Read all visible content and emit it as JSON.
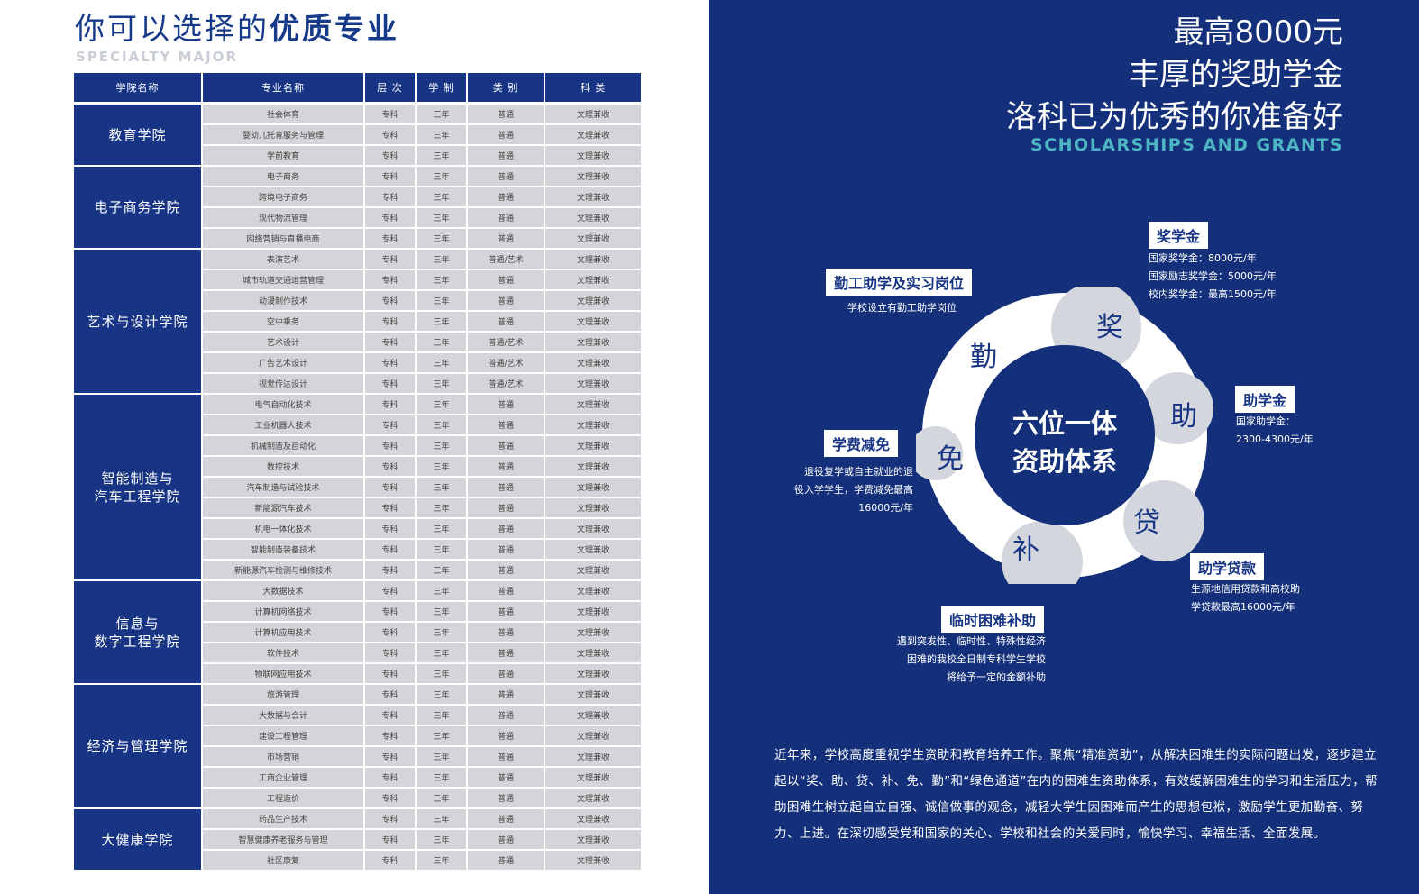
{
  "left": {
    "title_normal": "你可以选择的",
    "title_bold": "优质专业",
    "subtitle": "SPECIALTY   MAJOR",
    "headers": [
      "学院名称",
      "专业名称",
      "层 次",
      "学 制",
      "类 别",
      "科 类"
    ],
    "colleges": [
      {
        "name": "教育学院",
        "majors": [
          [
            "社会体育",
            "专科",
            "三年",
            "普通",
            "文理兼收"
          ],
          [
            "婴幼儿托育服务与管理",
            "专科",
            "三年",
            "普通",
            "文理兼收"
          ],
          [
            "学前教育",
            "专科",
            "三年",
            "普通",
            "文理兼收"
          ]
        ]
      },
      {
        "name": "电子商务学院",
        "majors": [
          [
            "电子商务",
            "专科",
            "三年",
            "普通",
            "文理兼收"
          ],
          [
            "跨境电子商务",
            "专科",
            "三年",
            "普通",
            "文理兼收"
          ],
          [
            "现代物流管理",
            "专科",
            "三年",
            "普通",
            "文理兼收"
          ],
          [
            "网络营销与直播电商",
            "专科",
            "三年",
            "普通",
            "文理兼收"
          ]
        ]
      },
      {
        "name": "艺术与设计学院",
        "majors": [
          [
            "表演艺术",
            "专科",
            "三年",
            "普通/艺术",
            "文理兼收"
          ],
          [
            "城市轨道交通运营管理",
            "专科",
            "三年",
            "普通",
            "文理兼收"
          ],
          [
            "动漫制作技术",
            "专科",
            "三年",
            "普通",
            "文理兼收"
          ],
          [
            "空中乘务",
            "专科",
            "三年",
            "普通",
            "文理兼收"
          ],
          [
            "艺术设计",
            "专科",
            "三年",
            "普通/艺术",
            "文理兼收"
          ],
          [
            "广告艺术设计",
            "专科",
            "三年",
            "普通/艺术",
            "文理兼收"
          ],
          [
            "视觉传达设计",
            "专科",
            "三年",
            "普通/艺术",
            "文理兼收"
          ]
        ]
      },
      {
        "name": "智能制造与汽车工程学院",
        "majors": [
          [
            "电气自动化技术",
            "专科",
            "三年",
            "普通",
            "文理兼收"
          ],
          [
            "工业机器人技术",
            "专科",
            "三年",
            "普通",
            "文理兼收"
          ],
          [
            "机械制造及自动化",
            "专科",
            "三年",
            "普通",
            "文理兼收"
          ],
          [
            "数控技术",
            "专科",
            "三年",
            "普通",
            "文理兼收"
          ],
          [
            "汽车制造与试验技术",
            "专科",
            "三年",
            "普通",
            "文理兼收"
          ],
          [
            "新能源汽车技术",
            "专科",
            "三年",
            "普通",
            "文理兼收"
          ],
          [
            "机电一体化技术",
            "专科",
            "三年",
            "普通",
            "文理兼收"
          ],
          [
            "智能制造装备技术",
            "专科",
            "三年",
            "普通",
            "文理兼收"
          ],
          [
            "新能源汽车检测与维修技术",
            "专科",
            "三年",
            "普通",
            "文理兼收"
          ]
        ]
      },
      {
        "name": "信息与数字工程学院",
        "majors": [
          [
            "大数据技术",
            "专科",
            "三年",
            "普通",
            "文理兼收"
          ],
          [
            "计算机网络技术",
            "专科",
            "三年",
            "普通",
            "文理兼收"
          ],
          [
            "计算机应用技术",
            "专科",
            "三年",
            "普通",
            "文理兼收"
          ],
          [
            "软件技术",
            "专科",
            "三年",
            "普通",
            "文理兼收"
          ],
          [
            "物联网应用技术",
            "专科",
            "三年",
            "普通",
            "文理兼收"
          ]
        ]
      },
      {
        "name": "经济与管理学院",
        "majors": [
          [
            "旅游管理",
            "专科",
            "三年",
            "普通",
            "文理兼收"
          ],
          [
            "大数据与会计",
            "专科",
            "三年",
            "普通",
            "文理兼收"
          ],
          [
            "建设工程管理",
            "专科",
            "三年",
            "普通",
            "文理兼收"
          ],
          [
            "市场营销",
            "专科",
            "三年",
            "普通",
            "文理兼收"
          ],
          [
            "工商企业管理",
            "专科",
            "三年",
            "普通",
            "文理兼收"
          ],
          [
            "工程造价",
            "专科",
            "三年",
            "普通",
            "文理兼收"
          ]
        ]
      },
      {
        "name": "大健康学院",
        "majors": [
          [
            "药品生产技术",
            "专科",
            "三年",
            "普通",
            "文理兼收"
          ],
          [
            "智慧健康养老服务与管理",
            "专科",
            "三年",
            "普通",
            "文理兼收"
          ],
          [
            "社区康复",
            "专科",
            "三年",
            "普通",
            "文理兼收"
          ]
        ]
      }
    ]
  },
  "right": {
    "title1": "最高8000元",
    "title2": "丰厚的奖助学金",
    "title3": "洛科已为优秀的你准备好",
    "title_en": "SCHOLARSHIPS AND GRANTS",
    "center1": "六位一体",
    "center2": "资助体系",
    "ring_chars": {
      "jiang": "奖",
      "zhu": "助",
      "dai": "贷",
      "bu": "补",
      "mian": "免",
      "qin": "勤"
    },
    "items": {
      "scholarship": {
        "label": "奖学金",
        "lines": [
          "国家奖学金：8000元/年",
          "国家励志奖学金：5000元/年",
          "校内奖学金：最高1500元/年"
        ]
      },
      "grant": {
        "label": "助学金",
        "lines": [
          "国家助学金：",
          "2300-4300元/年"
        ]
      },
      "loan": {
        "label": "助学贷款",
        "lines": [
          "生源地信用贷款和高校助",
          "学贷款最高16000元/年"
        ]
      },
      "subsidy": {
        "label": "临时困难补助",
        "lines": [
          "遇到突发性、临时性、特殊性经济",
          "困难的我校全日制专科学生学校",
          "将给予一定的金额补助"
        ]
      },
      "tuition": {
        "label": "学费减免",
        "lines": [
          "退役复学或自主就业的退",
          "役入学学生，学费减免最高",
          "16000元/年"
        ]
      },
      "workstudy": {
        "label": "勤工助学及实习岗位",
        "lines": [
          "学校设立有勤工助学岗位"
        ]
      }
    },
    "paragraph": "近年来，学校高度重视学生资助和教育培养工作。聚焦“精准资助”，从解决困难生的实际问题出发，逐步建立起以“奖、助、贷、补、免、勤”和“绿色通道”在内的困难生资助体系，有效缓解困难生的学习和生活压力，帮助困难生树立起自立自强、诚信做事的观念，减轻大学生因困难而产生的思想包袱，激励学生更加勤奋、努力、上进。在深切感受党和国家的关心、学校和社会的关爱同时，愉快学习、幸福生活、全面发展。"
  }
}
